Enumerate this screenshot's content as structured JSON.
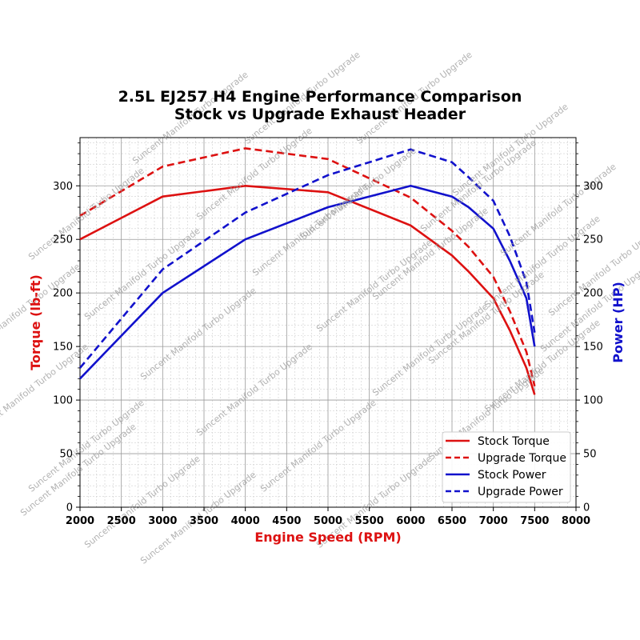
{
  "chart_data": {
    "type": "line",
    "title": "2.5L EJ257 H4 Engine Performance Comparison",
    "subtitle": "Stock vs Upgrade Exhaust Header",
    "xlabel": "Engine Speed (RPM)",
    "ylabel_left": "Torque (lb-ft)",
    "ylabel_right": "Power (HP)",
    "xlim": [
      2000,
      8000
    ],
    "ylim_left": [
      0,
      345
    ],
    "ylim_right": [
      0,
      345
    ],
    "x_ticks": [
      2000,
      2500,
      3000,
      3500,
      4000,
      4500,
      5000,
      5500,
      6000,
      6500,
      7000,
      7500,
      8000
    ],
    "y_ticks": [
      0,
      50,
      100,
      150,
      200,
      250,
      300
    ],
    "grid": true,
    "legend_position": "lower-right",
    "watermark": "Suncent Manifold Turbo Upgrade",
    "colors": {
      "torque": "#dd1111",
      "power": "#1111cc",
      "torque_label": "#dd1111",
      "power_label": "#1111cc"
    },
    "series": [
      {
        "name": "Stock Torque",
        "axis": "left",
        "style": "solid",
        "color": "#dd1111",
        "x": [
          2000,
          3000,
          4000,
          5000,
          6000,
          6500,
          6700,
          7000,
          7200,
          7400,
          7500
        ],
        "y": [
          250,
          290,
          300,
          294,
          263,
          235,
          220,
          195,
          165,
          130,
          105
        ]
      },
      {
        "name": "Upgrade Torque",
        "axis": "left",
        "style": "dashed",
        "color": "#dd1111",
        "x": [
          2000,
          3000,
          4000,
          5000,
          6000,
          6500,
          6700,
          7000,
          7200,
          7400,
          7500
        ],
        "y": [
          272,
          318,
          335,
          325,
          289,
          258,
          243,
          215,
          183,
          145,
          113
        ]
      },
      {
        "name": "Stock Power",
        "axis": "right",
        "style": "solid",
        "color": "#1111cc",
        "x": [
          2000,
          3000,
          4000,
          5000,
          6000,
          6500,
          6700,
          7000,
          7200,
          7400,
          7500
        ],
        "y": [
          120,
          200,
          250,
          280,
          300,
          290,
          280,
          260,
          230,
          195,
          150
        ]
      },
      {
        "name": "Upgrade Power",
        "axis": "right",
        "style": "dashed",
        "color": "#1111cc",
        "x": [
          2000,
          3000,
          4000,
          5000,
          6000,
          6500,
          6700,
          7000,
          7200,
          7400,
          7500
        ],
        "y": [
          130,
          222,
          275,
          310,
          334,
          322,
          308,
          286,
          253,
          210,
          163
        ]
      }
    ]
  }
}
